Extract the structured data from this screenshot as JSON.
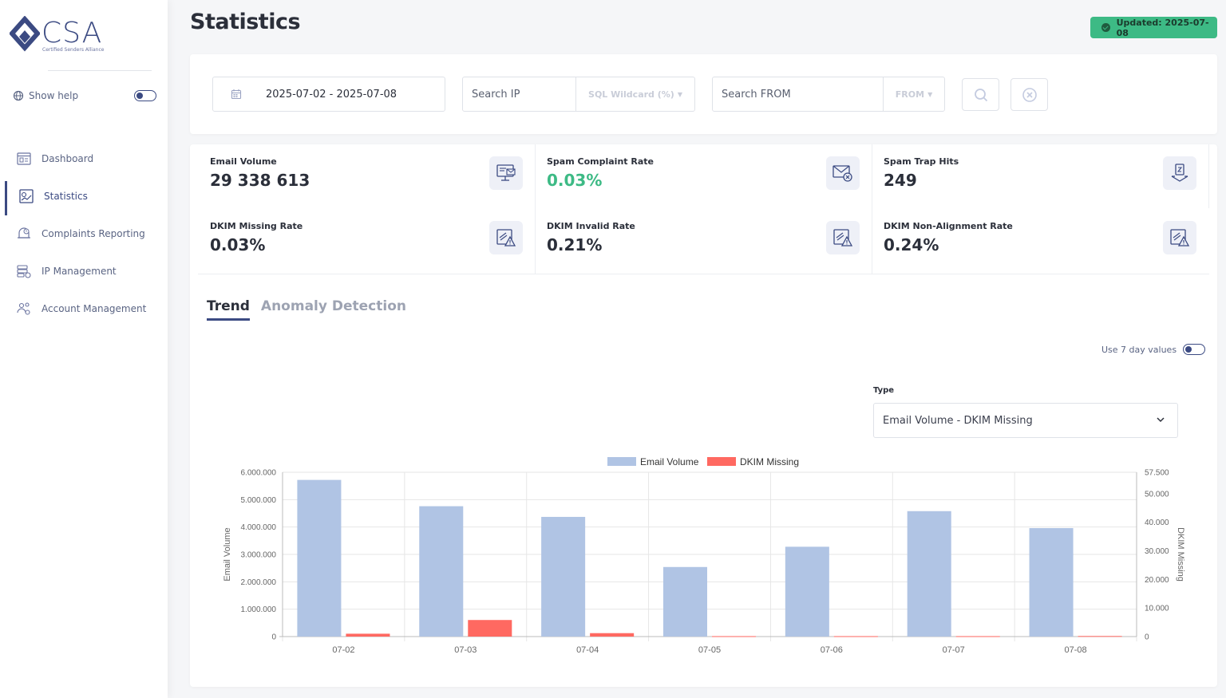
{
  "colors": {
    "brand": "#3b4a82",
    "success": "#3dba85",
    "bar_email": "#b0c4e4",
    "bar_dkim": "#ff6961"
  },
  "sidebar": {
    "logo_text": "CSA",
    "logo_sub": "Certified Senders Alliance",
    "show_help_label": "Show help",
    "show_help_on": false,
    "items": [
      {
        "label": "Dashboard",
        "icon": "dashboard-icon",
        "active": false
      },
      {
        "label": "Statistics",
        "icon": "statistics-icon",
        "active": true
      },
      {
        "label": "Complaints Reporting",
        "icon": "complaints-icon",
        "active": false
      },
      {
        "label": "IP Management",
        "icon": "ip-management-icon",
        "active": false
      },
      {
        "label": "Account Management",
        "icon": "account-management-icon",
        "active": false
      }
    ]
  },
  "header": {
    "title": "Statistics",
    "updated": "Updated: 2025-07-08"
  },
  "filters": {
    "date_range": "2025-07-02 - 2025-07-08",
    "ip_placeholder": "Search IP",
    "ip_mode": "SQL Wildcard (%)",
    "from_placeholder": "Search FROM",
    "from_mode": "FROM"
  },
  "metrics": [
    {
      "label": "Email Volume",
      "value": "29 338 613",
      "icon": "email-monitor-icon",
      "highlight": false
    },
    {
      "label": "Spam Complaint Rate",
      "value": "0.03%",
      "icon": "mail-x-icon",
      "highlight": true
    },
    {
      "label": "Spam Trap Hits",
      "value": "249",
      "icon": "trap-icon",
      "highlight": false
    },
    {
      "label": "DKIM Missing Rate",
      "value": "0.03%",
      "icon": "dkim-warning-icon",
      "highlight": false
    },
    {
      "label": "DKIM Invalid Rate",
      "value": "0.21%",
      "icon": "dkim-warning-icon",
      "highlight": false
    },
    {
      "label": "DKIM Non-Alignment Rate",
      "value": "0.24%",
      "icon": "dkim-warning-icon",
      "highlight": false
    }
  ],
  "tabs": [
    {
      "label": "Trend",
      "active": true
    },
    {
      "label": "Anomaly Detection",
      "active": false
    }
  ],
  "seven_day_label": "Use 7 day values",
  "type_label": "Type",
  "type_value": "Email Volume - DKIM Missing",
  "chart_data": {
    "type": "bar",
    "categories": [
      "07-02",
      "07-03",
      "07-04",
      "07-05",
      "07-06",
      "07-07",
      "07-08"
    ],
    "series": [
      {
        "name": "Email Volume",
        "axis": "left",
        "color": "#b0c4e4",
        "values": [
          5720000,
          4760000,
          4370000,
          2540000,
          3280000,
          4580000,
          3960000
        ]
      },
      {
        "name": "DKIM Missing",
        "axis": "right",
        "color": "#ff6961",
        "values": [
          1000,
          5800,
          1200,
          150,
          150,
          150,
          200
        ]
      }
    ],
    "ylabel": "Email Volume",
    "y2label": "DKIM Missing",
    "ylim": [
      0,
      6000000
    ],
    "y2lim": [
      0,
      57500
    ],
    "yticks": [
      "0",
      "1.000.000",
      "2.000.000",
      "3.000.000",
      "4.000.000",
      "5.000.000",
      "6.000.000"
    ],
    "y2ticks": [
      "0",
      "10.000",
      "20.000",
      "30.000",
      "40.000",
      "50.000",
      "57.500"
    ],
    "legend": "top-center",
    "grid": true
  }
}
